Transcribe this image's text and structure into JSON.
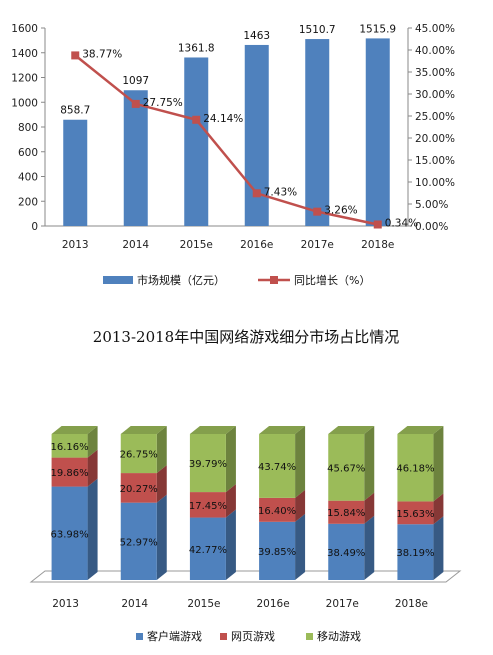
{
  "chart_data": [
    {
      "type": "bar",
      "title": "",
      "categories": [
        "2013",
        "2014",
        "2015e",
        "2016e",
        "2017e",
        "2018e"
      ],
      "series": [
        {
          "name": "市场规模（亿元）",
          "values": [
            858.7,
            1097,
            1361.8,
            1463,
            1510.7,
            1515.9
          ],
          "color": "#4f81bd",
          "axis": "left"
        },
        {
          "name": "同比增长（%）",
          "values": [
            38.77,
            27.75,
            24.14,
            7.43,
            3.26,
            0.34
          ],
          "color": "#c0504d",
          "axis": "right",
          "type": "line"
        }
      ],
      "value_labels": [
        "858.7",
        "1097",
        "1361.8",
        "1463",
        "1510.7",
        "1515.9"
      ],
      "growth_labels": [
        "38.77%",
        "27.75%",
        "24.14%",
        "7.43%",
        "3.26%",
        "0.34%"
      ],
      "ylim": [
        0,
        1600
      ],
      "yticks": [
        "0",
        "200",
        "400",
        "600",
        "800",
        "1000",
        "1200",
        "1400",
        "1600"
      ],
      "y2lim": [
        0,
        45
      ],
      "y2ticks": [
        "0.00%",
        "5.00%",
        "10.00%",
        "15.00%",
        "20.00%",
        "25.00%",
        "30.00%",
        "35.00%",
        "40.00%",
        "45.00%"
      ],
      "legend_position": "bottom",
      "grid": false
    },
    {
      "type": "bar",
      "stacked": true,
      "title": "2013-2018年中国网络游戏细分市场占比情况",
      "categories": [
        "2013",
        "2014",
        "2015e",
        "2016e",
        "2017e",
        "2018e"
      ],
      "series": [
        {
          "name": "客户端游戏",
          "values": [
            63.98,
            52.97,
            42.77,
            39.85,
            38.49,
            38.19
          ],
          "labels": [
            "63.98%",
            "52.97%",
            "42.77%",
            "39.85%",
            "38.49%",
            "38.19%"
          ],
          "color": "#4f81bd"
        },
        {
          "name": "网页游戏",
          "values": [
            19.86,
            20.27,
            17.45,
            16.4,
            15.84,
            15.63
          ],
          "labels": [
            "19.86%",
            "20.27%",
            "17.45%",
            "16.40%",
            "15.84%",
            "15.63%"
          ],
          "color": "#c0504d"
        },
        {
          "name": "移动游戏",
          "values": [
            16.16,
            26.75,
            39.79,
            43.74,
            45.67,
            46.18
          ],
          "labels": [
            "16.16%",
            "26.75%",
            "39.79%",
            "43.74%",
            "45.67%",
            "46.18%"
          ],
          "color": "#9bbb59"
        }
      ],
      "ylim": [
        0,
        100
      ],
      "legend_position": "bottom",
      "grid": false
    }
  ]
}
